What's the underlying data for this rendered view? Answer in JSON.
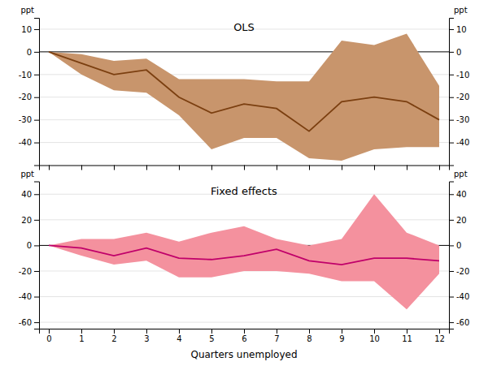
{
  "chart_data": [
    {
      "type": "line",
      "title": "OLS",
      "ylabel": "ppt",
      "x": [
        0,
        1,
        2,
        3,
        4,
        5,
        6,
        7,
        8,
        9,
        10,
        11,
        12
      ],
      "series": [
        {
          "type": "band",
          "color": "#C8956C",
          "lower": [
            0,
            -10,
            -17,
            -18,
            -28,
            -43,
            -38,
            -38,
            -47,
            -48,
            -43,
            -42,
            -42
          ],
          "upper": [
            0,
            -1,
            -4,
            -3,
            -12,
            -12,
            -12,
            -13,
            -13,
            5,
            3,
            8,
            -15
          ]
        },
        {
          "type": "line",
          "color": "#7B3F10",
          "values": [
            0,
            -5,
            -10,
            -8,
            -20,
            -27,
            -23,
            -25,
            -35,
            -22,
            -20,
            -22,
            -30
          ]
        }
      ],
      "xlim": [
        -0.3,
        12.3
      ],
      "xticks": [
        0,
        1,
        2,
        3,
        4,
        5,
        6,
        7,
        8,
        9,
        10,
        11,
        12
      ],
      "ylim": [
        -50,
        15
      ],
      "yticks": [
        10,
        0,
        -10,
        -20,
        -30,
        -40
      ],
      "grid": true,
      "tick_labels": "y"
    },
    {
      "type": "line",
      "title": "Fixed effects",
      "ylabel": "ppt",
      "xlabel": "Quarters unemployed",
      "x": [
        0,
        1,
        2,
        3,
        4,
        5,
        6,
        7,
        8,
        9,
        10,
        11,
        12
      ],
      "series": [
        {
          "type": "band",
          "color": "#F4919E",
          "lower": [
            0,
            -8,
            -15,
            -12,
            -25,
            -25,
            -20,
            -20,
            -22,
            -28,
            -28,
            -50,
            -22
          ],
          "upper": [
            0,
            5,
            5,
            10,
            3,
            10,
            15,
            5,
            0,
            5,
            40,
            10,
            0
          ]
        },
        {
          "type": "line",
          "color": "#C0006A",
          "values": [
            0,
            -2,
            -8,
            -2,
            -10,
            -11,
            -8,
            -3,
            -12,
            -15,
            -10,
            -10,
            -12
          ]
        }
      ],
      "xlim": [
        -0.3,
        12.3
      ],
      "xticks": [
        0,
        1,
        2,
        3,
        4,
        5,
        6,
        7,
        8,
        9,
        10,
        11,
        12
      ],
      "ylim": [
        -65,
        50
      ],
      "yticks": [
        40,
        20,
        0,
        -20,
        -40,
        -60
      ],
      "grid": true
    }
  ]
}
